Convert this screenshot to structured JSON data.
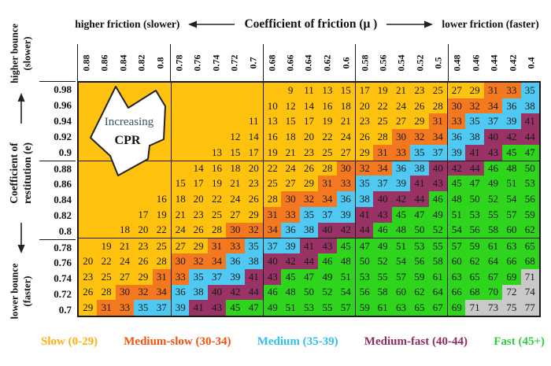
{
  "header": {
    "left_label": "higher friction (slower)",
    "title": "Coefficient of friction (μ )",
    "right_label": "lower friction (faster)"
  },
  "left_axis": {
    "top_line1": "higher bounce",
    "top_line2": "(slower)",
    "mid_line1": "Coefficient of",
    "mid_line2": "restitution (e)",
    "bottom_line1": "lower bounce",
    "bottom_line2": "(faster)"
  },
  "annotation": {
    "line1": "Increasing",
    "line2": "CPR",
    "line1_color": "#3A5464",
    "line2_color": "#111111"
  },
  "chart_data": {
    "type": "heatmap",
    "x_axis_label": "Coefficient of friction (μ)",
    "y_axis_label": "Coefficient of restitution (e)",
    "x_direction_note_left": "higher friction (slower)",
    "x_direction_note_right": "lower friction (faster)",
    "y_direction_note_top": "higher bounce (slower)",
    "y_direction_note_bottom": "lower bounce (faster)",
    "columns": [
      "0.88",
      "0.86",
      "0.84",
      "0.82",
      "0.8",
      "0.78",
      "0.76",
      "0.74",
      "0.72",
      "0.7",
      "0.68",
      "0.66",
      "0.64",
      "0.62",
      "0.6",
      "0.58",
      "0.56",
      "0.54",
      "0.52",
      "0.5",
      "0.48",
      "0.46",
      "0.44",
      "0.42",
      "0.4"
    ],
    "rows": [
      "0.98",
      "0.96",
      "0.94",
      "0.92",
      "0.9",
      "0.88",
      "0.86",
      "0.84",
      "0.82",
      "0.8",
      "0.78",
      "0.76",
      "0.74",
      "0.72",
      "0.7"
    ],
    "values": [
      [
        null,
        null,
        null,
        null,
        null,
        null,
        null,
        null,
        null,
        null,
        null,
        9,
        11,
        13,
        15,
        17,
        19,
        21,
        23,
        25,
        27,
        29,
        31,
        33,
        35
      ],
      [
        null,
        null,
        null,
        null,
        null,
        null,
        null,
        null,
        null,
        null,
        10,
        12,
        14,
        16,
        18,
        20,
        22,
        24,
        26,
        28,
        30,
        32,
        34,
        36,
        38
      ],
      [
        null,
        null,
        null,
        null,
        null,
        null,
        null,
        null,
        null,
        11,
        13,
        15,
        17,
        19,
        21,
        23,
        25,
        27,
        29,
        31,
        33,
        35,
        37,
        39,
        41
      ],
      [
        null,
        null,
        null,
        null,
        null,
        null,
        null,
        null,
        12,
        14,
        16,
        18,
        20,
        22,
        24,
        26,
        28,
        30,
        32,
        34,
        36,
        38,
        40,
        42,
        44
      ],
      [
        null,
        null,
        null,
        null,
        null,
        null,
        null,
        13,
        15,
        17,
        19,
        21,
        23,
        25,
        27,
        29,
        31,
        33,
        35,
        37,
        39,
        41,
        43,
        45,
        47
      ],
      [
        null,
        null,
        null,
        null,
        null,
        null,
        14,
        16,
        18,
        20,
        22,
        24,
        26,
        28,
        30,
        32,
        34,
        36,
        38,
        40,
        42,
        44,
        46,
        48,
        50
      ],
      [
        null,
        null,
        null,
        null,
        null,
        15,
        17,
        19,
        21,
        23,
        25,
        27,
        29,
        31,
        33,
        35,
        37,
        39,
        41,
        43,
        45,
        47,
        49,
        51,
        53
      ],
      [
        null,
        null,
        null,
        null,
        16,
        18,
        20,
        22,
        24,
        26,
        28,
        30,
        32,
        34,
        36,
        38,
        40,
        42,
        44,
        46,
        48,
        50,
        52,
        54,
        56
      ],
      [
        null,
        null,
        null,
        17,
        19,
        21,
        23,
        25,
        27,
        29,
        31,
        33,
        35,
        37,
        39,
        41,
        43,
        45,
        47,
        49,
        51,
        53,
        55,
        57,
        59
      ],
      [
        null,
        null,
        18,
        20,
        22,
        24,
        26,
        28,
        30,
        32,
        34,
        36,
        38,
        40,
        42,
        44,
        46,
        48,
        50,
        52,
        54,
        56,
        58,
        60,
        62
      ],
      [
        null,
        19,
        21,
        23,
        25,
        27,
        29,
        31,
        33,
        35,
        37,
        39,
        41,
        43,
        45,
        47,
        49,
        51,
        53,
        55,
        57,
        59,
        61,
        63,
        65
      ],
      [
        20,
        22,
        24,
        26,
        28,
        30,
        32,
        34,
        36,
        38,
        40,
        42,
        44,
        46,
        48,
        50,
        52,
        54,
        56,
        58,
        60,
        62,
        64,
        66,
        68
      ],
      [
        23,
        25,
        27,
        29,
        31,
        33,
        35,
        37,
        39,
        41,
        43,
        45,
        47,
        49,
        51,
        53,
        55,
        57,
        59,
        61,
        63,
        65,
        67,
        69,
        71
      ],
      [
        26,
        28,
        30,
        32,
        34,
        36,
        38,
        40,
        42,
        44,
        46,
        48,
        50,
        52,
        54,
        56,
        58,
        60,
        62,
        64,
        66,
        68,
        70,
        72,
        74
      ],
      [
        29,
        31,
        33,
        35,
        37,
        39,
        41,
        43,
        45,
        47,
        49,
        51,
        53,
        55,
        57,
        59,
        61,
        63,
        65,
        67,
        69,
        71,
        73,
        75,
        77
      ]
    ],
    "color_scale": [
      {
        "label": "Slow (0-29)",
        "min": 0,
        "max": 29,
        "cell_color": "#FFC20E",
        "legend_text_color": "#FFAF12"
      },
      {
        "label": "Medium-slow (30-34)",
        "min": 30,
        "max": 34,
        "cell_color": "#F4781F",
        "legend_text_color": "#F4500F"
      },
      {
        "label": "Medium (35-39)",
        "min": 35,
        "max": 39,
        "cell_color": "#4FC8F2",
        "legend_text_color": "#33BEEC"
      },
      {
        "label": "Medium-fast (40-44)",
        "min": 40,
        "max": 44,
        "cell_color": "#993366",
        "legend_text_color": "#8C2D5E"
      },
      {
        "label": "Fast (45+)",
        "min": 45,
        "max": 70,
        "cell_color": "#2ED51C",
        "legend_text_color": "#33CC43"
      },
      {
        "label": "",
        "min": 71,
        "max": 999,
        "cell_color": "#C9C9C9",
        "legend_text_color": ""
      }
    ],
    "empty_cell_color": "#FFC20E",
    "grid_line_color": "#1a1a1a"
  }
}
